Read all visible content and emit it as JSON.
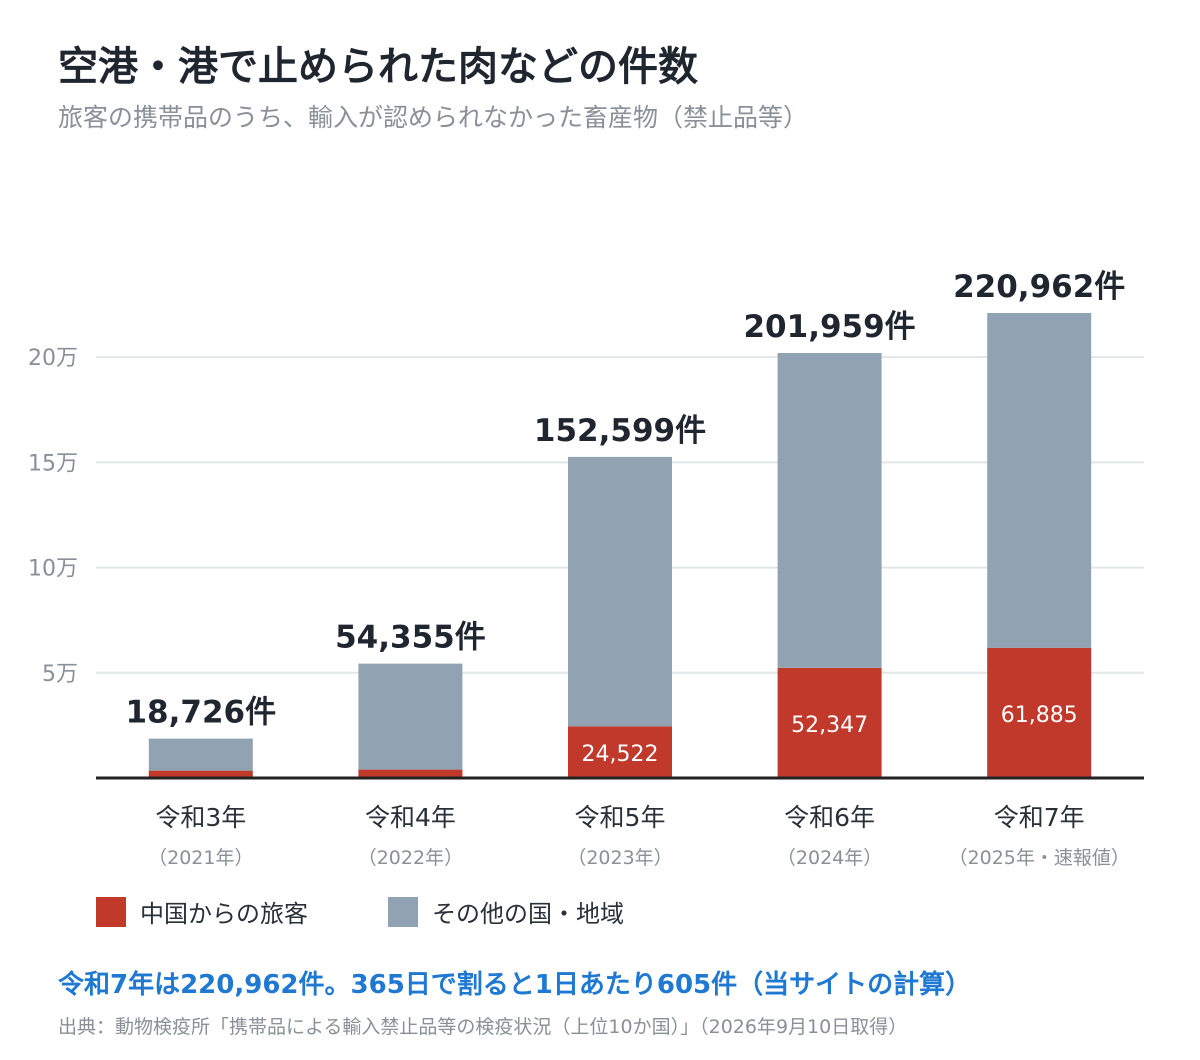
{
  "header": {
    "title": "空港・港で止められた肉などの件数",
    "subtitle": "旅客の携帯品のうち、輸入が認められなかった畜産物（禁止品等）"
  },
  "chart_data": {
    "type": "bar",
    "stacked": true,
    "categories": [
      "令和3年",
      "令和4年",
      "令和5年",
      "令和6年",
      "令和7年"
    ],
    "category_sublabels": [
      "（2021年）",
      "（2022年）",
      "（2023年）",
      "（2024年）",
      "（2025年・速報値）"
    ],
    "totals": [
      18726,
      54355,
      152599,
      201959,
      220962
    ],
    "total_labels": [
      "18,726件",
      "54,355件",
      "152,599件",
      "201,959件",
      "220,962件"
    ],
    "series": [
      {
        "name": "中国からの旅客",
        "color": "#c0392b",
        "values": [
          3500,
          4000,
          24522,
          52347,
          61885
        ],
        "value_labels": [
          "",
          "",
          "24,522",
          "52,347",
          "61,885"
        ]
      },
      {
        "name": "その他の国・地域",
        "color": "#91a3b2",
        "values": [
          15226,
          50355,
          128077,
          149612,
          159077
        ]
      }
    ],
    "yticks": [
      50000,
      100000,
      150000,
      200000
    ],
    "ytick_labels": [
      "5万",
      "10万",
      "15万",
      "20万"
    ],
    "ylim": [
      0,
      230000
    ],
    "grid": true,
    "legend_position": "bottom-left"
  },
  "footer": {
    "note": "令和7年は220,962件。365日で割ると1日あたり605件（当サイトの計算）",
    "source": "出典：動物検疫所「携帯品による輸入禁止品等の検疫状況（上位10か国）」（2026年9月10日取得）"
  },
  "colors": {
    "axis": "#222222",
    "grid": "#e3e6e9",
    "tick_label": "#8a9097"
  }
}
